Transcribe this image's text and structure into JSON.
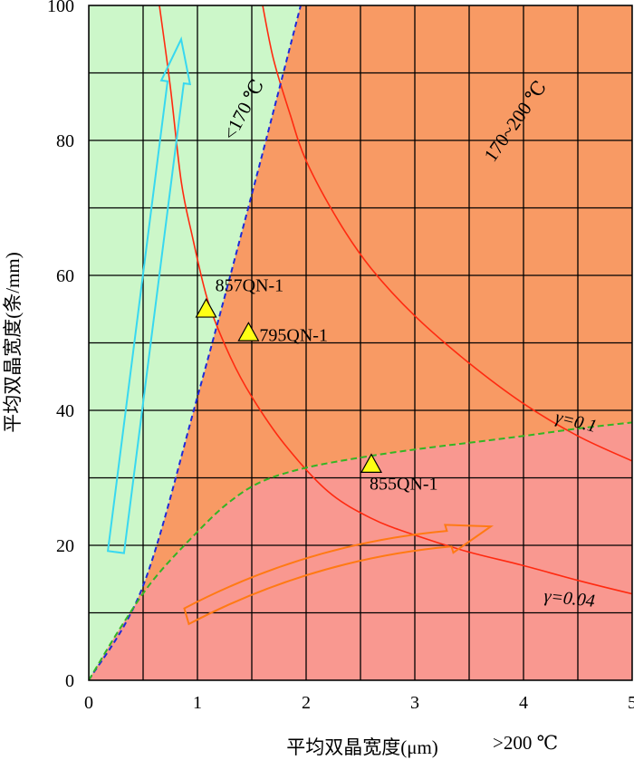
{
  "chart_data": {
    "type": "area",
    "xlabel": "平均双晶宽度(μm)",
    "ylabel": "平均双晶宽度(条/mm)",
    "xlim": [
      0,
      5
    ],
    "ylim": [
      0,
      100
    ],
    "x_ticks": [
      "0",
      "1",
      "2",
      "3",
      "4",
      "5"
    ],
    "y_ticks": [
      "0",
      "20",
      "40",
      "60",
      "80",
      "100"
    ],
    "grid": true,
    "x_grid": [
      0,
      0.5,
      1,
      1.5,
      2,
      2.5,
      3,
      3.5,
      4,
      4.5,
      5
    ],
    "y_grid": [
      0,
      10,
      20,
      30,
      40,
      50,
      60,
      70,
      80,
      90,
      100
    ],
    "colors": {
      "zone_low": "#ccf7c9",
      "zone_mid": "#f89a64",
      "zone_high": "#f99890",
      "gamma_curve": "#ff2a10",
      "boundary_170": "#1e2ad8",
      "boundary_200": "#33b524",
      "point_fill": "#ffff14",
      "arrow_cyan": "#38d8f0",
      "arrow_orange": "#ff7a14",
      "grid": "#000000"
    },
    "zones": [
      {
        "label": "<170 ℃",
        "color": "zone_low"
      },
      {
        "label": "170~200 ℃",
        "color": "zone_mid"
      },
      {
        "label": ">200 ℃",
        "color": "zone_high"
      }
    ],
    "boundary_170": [
      [
        0,
        0
      ],
      [
        0.5,
        14
      ],
      [
        1,
        42
      ],
      [
        1.5,
        72
      ],
      [
        1.95,
        100
      ]
    ],
    "boundary_200": [
      [
        0,
        0
      ],
      [
        0.3,
        8
      ],
      [
        0.6,
        15
      ],
      [
        1,
        22
      ],
      [
        1.3,
        26.5
      ],
      [
        1.6,
        29.5
      ],
      [
        2,
        31.5
      ],
      [
        2.5,
        33
      ],
      [
        3,
        34.2
      ],
      [
        3.5,
        35.2
      ],
      [
        4,
        36.2
      ],
      [
        4.5,
        37.3
      ],
      [
        5,
        38.2
      ]
    ],
    "series": [
      {
        "name": "γ=0.04",
        "points": [
          [
            0.65,
            100
          ],
          [
            0.75,
            88
          ],
          [
            0.85,
            74
          ],
          [
            0.95,
            66
          ],
          [
            1.1,
            56
          ],
          [
            1.3,
            48
          ],
          [
            1.5,
            42
          ],
          [
            1.8,
            35
          ],
          [
            2.2,
            28
          ],
          [
            2.6,
            24
          ],
          [
            3,
            21.5
          ],
          [
            3.5,
            19
          ],
          [
            4,
            17
          ],
          [
            4.5,
            14.8
          ],
          [
            5,
            12.8
          ]
        ]
      },
      {
        "name": "γ=0.1",
        "points": [
          [
            1.6,
            100
          ],
          [
            1.7,
            92
          ],
          [
            1.85,
            84
          ],
          [
            2,
            77
          ],
          [
            2.3,
            68
          ],
          [
            2.6,
            61
          ],
          [
            3,
            54
          ],
          [
            3.5,
            47
          ],
          [
            4,
            41
          ],
          [
            4.5,
            36.2
          ],
          [
            5,
            32.5
          ]
        ]
      }
    ],
    "points": [
      {
        "name": "857QN-1",
        "x": 1.08,
        "y": 55
      },
      {
        "name": "795QN-1",
        "x": 1.47,
        "y": 51.5
      },
      {
        "name": "855QN-1",
        "x": 2.6,
        "y": 32
      }
    ],
    "arrows": [
      {
        "name": "cyan-arrow",
        "color": "arrow_cyan",
        "from": [
          0.25,
          19
        ],
        "to": [
          0.85,
          95
        ]
      },
      {
        "name": "orange-arrow",
        "color": "arrow_orange",
        "from": [
          0.9,
          9.5
        ],
        "to": [
          3.7,
          22.8
        ]
      }
    ]
  }
}
